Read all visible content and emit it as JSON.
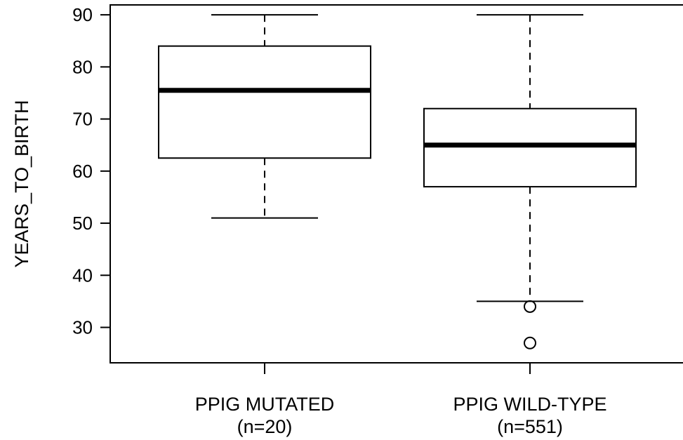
{
  "chart_data": {
    "type": "boxplot",
    "title": "",
    "xlabel": "",
    "ylabel": "YEARS_TO_BIRTH",
    "ylim": [
      23.2,
      91.9
    ],
    "yticks": [
      30,
      40,
      50,
      60,
      70,
      80,
      90
    ],
    "grid": false,
    "legend": "none",
    "categories": [
      {
        "label": "PPIG MUTATED",
        "sublabel": "(n=20)"
      },
      {
        "label": "PPIG WILD-TYPE",
        "sublabel": "(n=551)"
      }
    ],
    "boxes": [
      {
        "whisker_low": 51,
        "q1": 62.5,
        "median": 75.5,
        "q3": 84,
        "whisker_high": 90,
        "outliers": []
      },
      {
        "whisker_low": 35,
        "q1": 57,
        "median": 65,
        "q3": 72,
        "whisker_high": 90,
        "outliers": [
          34,
          27
        ]
      }
    ]
  }
}
